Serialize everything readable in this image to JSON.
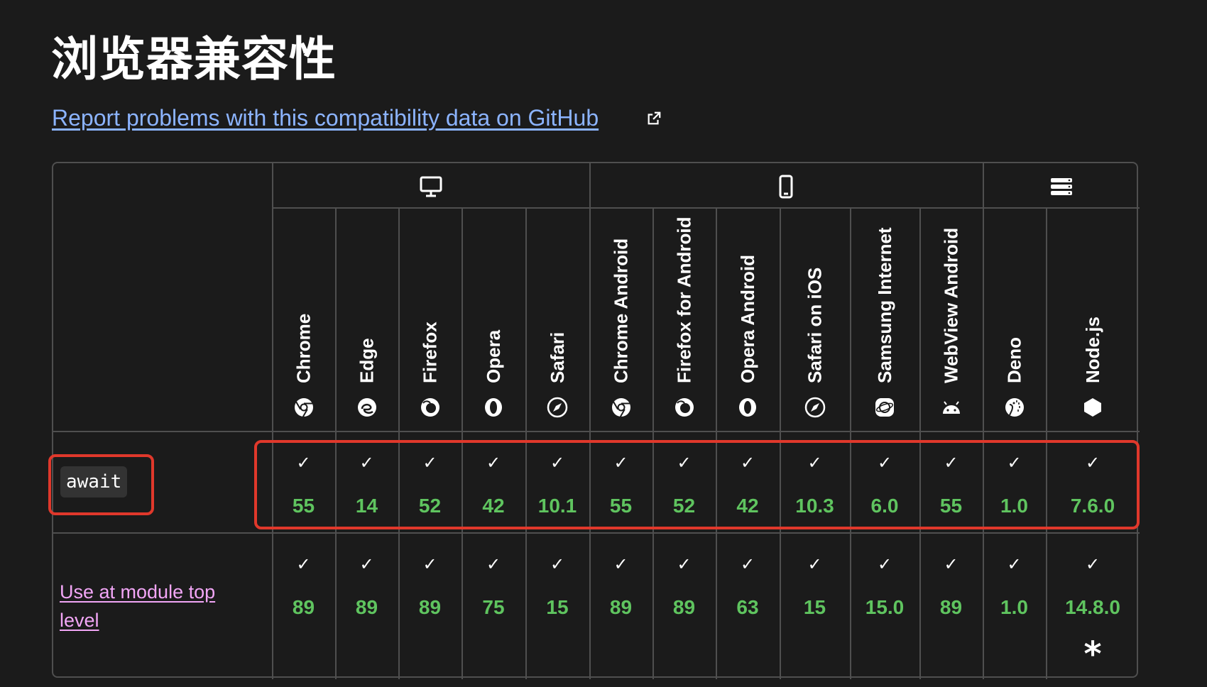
{
  "page": {
    "heading": "浏览器兼容性",
    "report_link": "Report problems with this compatibility data on GitHub"
  },
  "platforms": [
    {
      "name": "desktop",
      "icon": "desktop-icon"
    },
    {
      "name": "mobile",
      "icon": "mobile-icon"
    },
    {
      "name": "server",
      "icon": "server-icon"
    }
  ],
  "browsers": [
    {
      "name": "Chrome",
      "icon": "chrome-icon"
    },
    {
      "name": "Edge",
      "icon": "edge-icon"
    },
    {
      "name": "Firefox",
      "icon": "firefox-icon"
    },
    {
      "name": "Opera",
      "icon": "opera-icon"
    },
    {
      "name": "Safari",
      "icon": "safari-icon"
    },
    {
      "name": "Chrome Android",
      "icon": "chrome-icon"
    },
    {
      "name": "Firefox for Android",
      "icon": "firefox-icon"
    },
    {
      "name": "Opera Android",
      "icon": "opera-icon"
    },
    {
      "name": "Safari on iOS",
      "icon": "safari-icon"
    },
    {
      "name": "Samsung Internet",
      "icon": "samsung-internet-icon"
    },
    {
      "name": "WebView Android",
      "icon": "android-icon"
    },
    {
      "name": "Deno",
      "icon": "deno-icon"
    },
    {
      "name": "Node.js",
      "icon": "nodejs-icon"
    }
  ],
  "features": [
    {
      "name": "await",
      "versions": [
        "55",
        "14",
        "52",
        "42",
        "10.1",
        "55",
        "52",
        "42",
        "10.3",
        "6.0",
        "55",
        "1.0",
        "7.6.0"
      ]
    },
    {
      "name": "Use at module top level",
      "versions": [
        "89",
        "89",
        "89",
        "75",
        "15",
        "89",
        "89",
        "63",
        "15",
        "15.0",
        "89",
        "1.0",
        "14.8.0"
      ],
      "nodejs_note": "*"
    }
  ],
  "support_mark": "✓",
  "colors": {
    "background": "#1b1b1b",
    "link": "#8cb4ff",
    "visited_link": "#f2a6f6",
    "supported": "#5fc45f",
    "highlight": "#e0382b",
    "border": "#4f4f4f"
  }
}
